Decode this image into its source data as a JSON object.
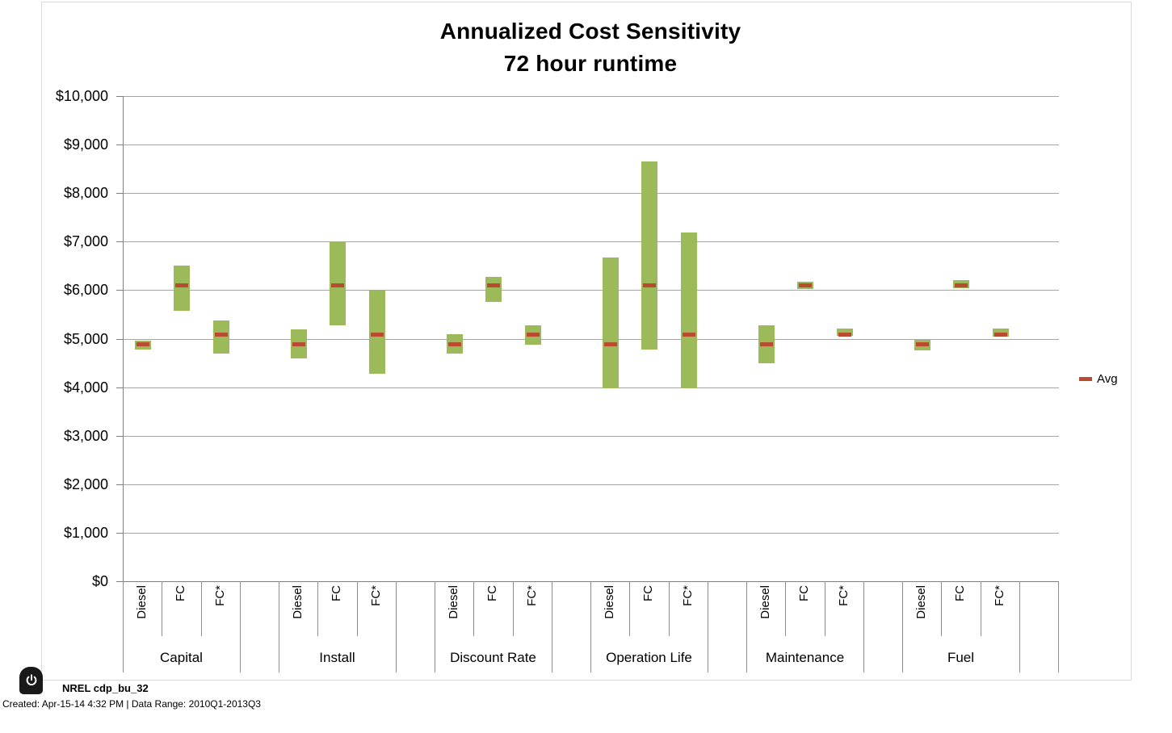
{
  "chart_data": {
    "type": "bar",
    "variant": "floating-range-bars-with-average-markers",
    "title": "Annualized Cost Sensitivity",
    "subtitle": "72 hour runtime",
    "xlabel": "",
    "ylabel": "",
    "ylim": [
      0,
      10000
    ],
    "ytick_interval": 1000,
    "ytick_labels": [
      "$0",
      "$1,000",
      "$2,000",
      "$3,000",
      "$4,000",
      "$5,000",
      "$6,000",
      "$7,000",
      "$8,000",
      "$9,000",
      "$10,000"
    ],
    "grid": true,
    "legend": {
      "label": "Avg",
      "position": "right"
    },
    "bar_labels": [
      "Diesel",
      "FC",
      "FC*"
    ],
    "groups": [
      {
        "label": "Capital",
        "bars": [
          {
            "label": "Diesel",
            "min": 4770,
            "max": 4960,
            "avg": 4890
          },
          {
            "label": "FC",
            "min": 5560,
            "max": 6500,
            "avg": 6090
          },
          {
            "label": "FC*",
            "min": 4690,
            "max": 5380,
            "avg": 5090
          }
        ]
      },
      {
        "label": "Install",
        "bars": [
          {
            "label": "Diesel",
            "min": 4590,
            "max": 5190,
            "avg": 4890
          },
          {
            "label": "FC",
            "min": 5280,
            "max": 6990,
            "avg": 6090
          },
          {
            "label": "FC*",
            "min": 4280,
            "max": 5990,
            "avg": 5090
          }
        ]
      },
      {
        "label": "Discount Rate",
        "bars": [
          {
            "label": "Diesel",
            "min": 4690,
            "max": 5090,
            "avg": 4890
          },
          {
            "label": "FC",
            "min": 5770,
            "max": 6280,
            "avg": 6090
          },
          {
            "label": "FC*",
            "min": 4880,
            "max": 5280,
            "avg": 5090
          }
        ]
      },
      {
        "label": "Operation Life",
        "bars": [
          {
            "label": "Diesel",
            "min": 3980,
            "max": 6670,
            "avg": 4890
          },
          {
            "label": "FC",
            "min": 4780,
            "max": 8660,
            "avg": 6090
          },
          {
            "label": "FC*",
            "min": 3970,
            "max": 7180,
            "avg": 5090
          }
        ]
      },
      {
        "label": "Maintenance",
        "bars": [
          {
            "label": "Diesel",
            "min": 4500,
            "max": 5280,
            "avg": 4890
          },
          {
            "label": "FC",
            "min": 6030,
            "max": 6180,
            "avg": 6090
          },
          {
            "label": "FC*",
            "min": 5050,
            "max": 5200,
            "avg": 5090
          }
        ]
      },
      {
        "label": "Fuel",
        "bars": [
          {
            "label": "Diesel",
            "min": 4770,
            "max": 4980,
            "avg": 4890
          },
          {
            "label": "FC",
            "min": 6030,
            "max": 6200,
            "avg": 6090
          },
          {
            "label": "FC*",
            "min": 5040,
            "max": 5210,
            "avg": 5090
          }
        ]
      }
    ],
    "colors": {
      "bar": "#9cba5a",
      "avg": "#b94b32",
      "gridline": "#a6a6a6",
      "axis": "#7f7f7f",
      "divider": "#8c8c8c",
      "frame_border": "#d9d9d9"
    }
  },
  "footer": {
    "source_label": "NREL cdp_bu_32",
    "created_line": "Created: Apr-15-14  4:32 PM | Data Range: 2010Q1-2013Q3",
    "power_icon": "power-icon"
  }
}
